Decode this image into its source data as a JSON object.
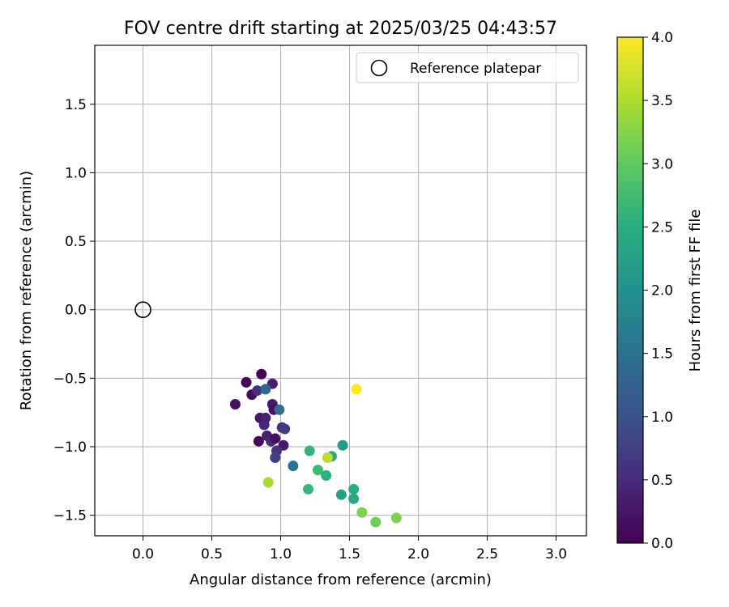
{
  "chart_data": {
    "type": "scatter",
    "title": "FOV centre drift starting at 2025/03/25 04:43:57",
    "xlabel": "Angular distance from reference (arcmin)",
    "ylabel": "Rotation from reference (arcmin)",
    "xlim": [
      -0.35,
      3.22
    ],
    "ylim": [
      -1.65,
      1.93
    ],
    "xticks": [
      "0.0",
      "0.5",
      "1.0",
      "1.5",
      "2.0",
      "2.5",
      "3.0"
    ],
    "yticks": [
      "−1.5",
      "−1.0",
      "−0.5",
      "0.0",
      "0.5",
      "1.0",
      "1.5"
    ],
    "grid": true,
    "legend": {
      "placement": "top-right",
      "entries": [
        "Reference platepar"
      ]
    },
    "reference_point": {
      "x": 0.0,
      "y": 0.0,
      "label": "Reference platepar"
    },
    "colorbar": {
      "label": "Hours from first FF file",
      "range": [
        0.0,
        4.0
      ],
      "ticks": [
        "0.0",
        "0.5",
        "1.0",
        "1.5",
        "2.0",
        "2.5",
        "3.0",
        "3.5",
        "4.0"
      ],
      "colormap": "viridis"
    },
    "series": [
      {
        "points": [
          {
            "x": 0.75,
            "y": -0.53,
            "c": 0.03
          },
          {
            "x": 0.86,
            "y": -0.47,
            "c": 0.06
          },
          {
            "x": 0.79,
            "y": -0.62,
            "c": 0.1
          },
          {
            "x": 0.67,
            "y": -0.69,
            "c": 0.2
          },
          {
            "x": 0.84,
            "y": -0.96,
            "c": 0.07
          },
          {
            "x": 0.83,
            "y": -0.59,
            "c": 0.6
          },
          {
            "x": 0.94,
            "y": -0.54,
            "c": 0.35
          },
          {
            "x": 0.89,
            "y": -0.58,
            "c": 1.3
          },
          {
            "x": 0.85,
            "y": -0.79,
            "c": 0.25
          },
          {
            "x": 0.89,
            "y": -0.79,
            "c": 0.4
          },
          {
            "x": 0.94,
            "y": -0.69,
            "c": 0.3
          },
          {
            "x": 0.95,
            "y": -0.73,
            "c": 0.15
          },
          {
            "x": 0.99,
            "y": -0.73,
            "c": 1.4
          },
          {
            "x": 0.88,
            "y": -0.84,
            "c": 0.45
          },
          {
            "x": 1.01,
            "y": -0.86,
            "c": 0.55
          },
          {
            "x": 1.03,
            "y": -0.87,
            "c": 0.7
          },
          {
            "x": 0.9,
            "y": -0.92,
            "c": 0.35
          },
          {
            "x": 0.93,
            "y": -0.96,
            "c": 0.5
          },
          {
            "x": 0.96,
            "y": -0.94,
            "c": 0.2
          },
          {
            "x": 1.02,
            "y": -0.99,
            "c": 0.3
          },
          {
            "x": 0.97,
            "y": -1.03,
            "c": 0.6
          },
          {
            "x": 0.96,
            "y": -1.08,
            "c": 0.75
          },
          {
            "x": 1.09,
            "y": -1.14,
            "c": 1.5
          },
          {
            "x": 1.21,
            "y": -1.03,
            "c": 2.6
          },
          {
            "x": 1.45,
            "y": -0.99,
            "c": 2.2
          },
          {
            "x": 1.37,
            "y": -1.07,
            "c": 2.4
          },
          {
            "x": 1.34,
            "y": -1.08,
            "c": 3.6
          },
          {
            "x": 1.27,
            "y": -1.17,
            "c": 2.7
          },
          {
            "x": 1.33,
            "y": -1.21,
            "c": 2.55
          },
          {
            "x": 0.91,
            "y": -1.26,
            "c": 3.5
          },
          {
            "x": 1.2,
            "y": -1.31,
            "c": 2.65
          },
          {
            "x": 1.44,
            "y": -1.35,
            "c": 2.3
          },
          {
            "x": 1.53,
            "y": -1.31,
            "c": 2.5
          },
          {
            "x": 1.53,
            "y": -1.38,
            "c": 2.4
          },
          {
            "x": 1.55,
            "y": -0.58,
            "c": 4.0
          },
          {
            "x": 1.59,
            "y": -1.48,
            "c": 3.2
          },
          {
            "x": 1.69,
            "y": -1.55,
            "c": 3.1
          },
          {
            "x": 1.84,
            "y": -1.52,
            "c": 3.2
          }
        ]
      }
    ]
  }
}
